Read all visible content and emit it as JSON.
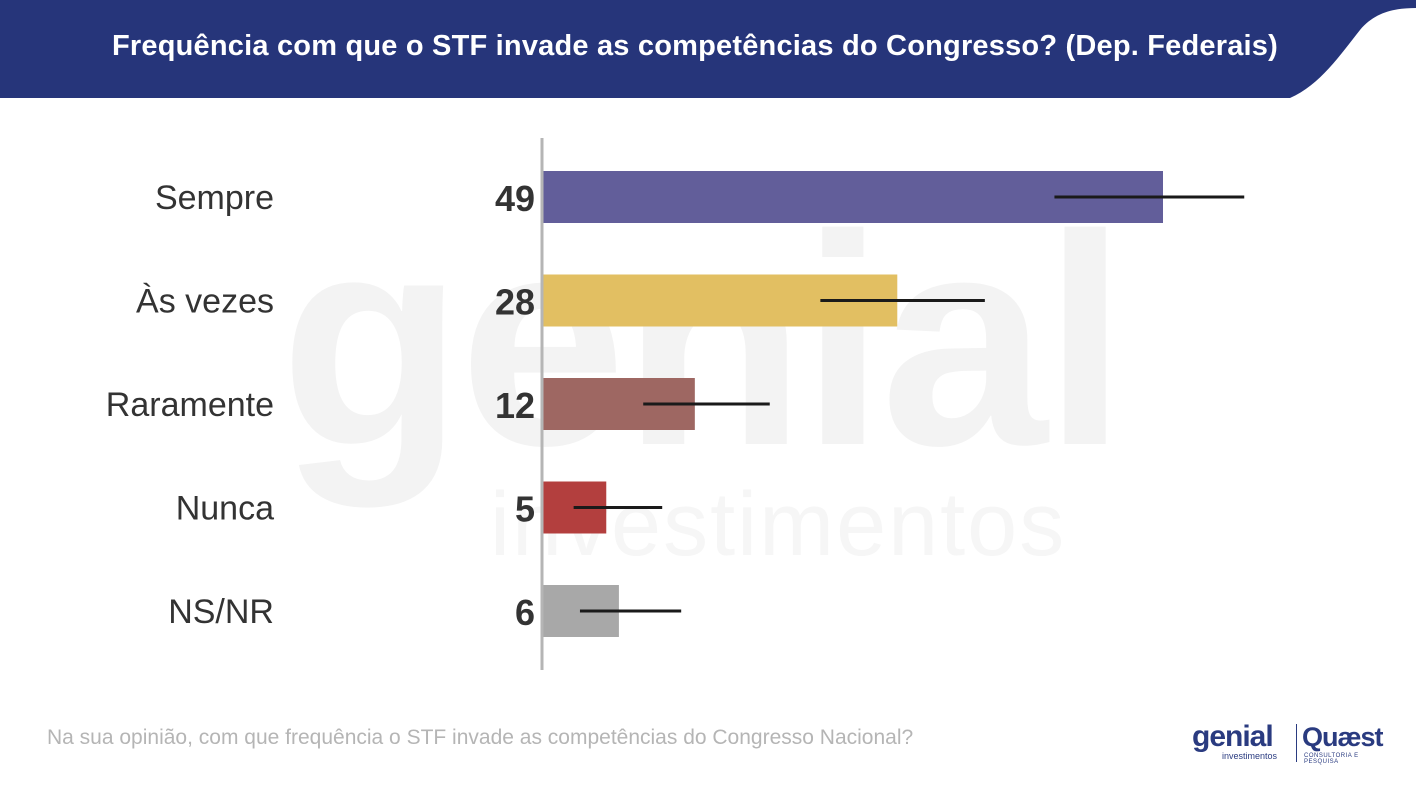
{
  "header": {
    "title": "Frequência com que o STF invade as competências do Congresso? (Dep. Federais)",
    "background_color": "#26357a"
  },
  "watermark": {
    "main_text": "genial",
    "sub_text": "investimentos"
  },
  "chart_data": {
    "type": "bar",
    "orientation": "horizontal",
    "title": "Frequência com que o STF invade as competências do Congresso? (Dep. Federais)",
    "categories": [
      "Sempre",
      "Às vezes",
      "Raramente",
      "Nunca",
      "NS/NR"
    ],
    "values": [
      49,
      28,
      12,
      5,
      6
    ],
    "value_labels": [
      "49",
      "28",
      "12",
      "5",
      "6"
    ],
    "error_bars": [
      {
        "low": 40.5,
        "high": 55.5
      },
      {
        "low": 22,
        "high": 35
      },
      {
        "low": 8,
        "high": 18
      },
      {
        "low": 2.5,
        "high": 9.5
      },
      {
        "low": 3,
        "high": 11
      }
    ],
    "colors": [
      "#625e9a",
      "#e2bf62",
      "#9e6762",
      "#b33f3e",
      "#a8a8a8"
    ],
    "xlim": [
      0,
      60
    ],
    "legend": "none",
    "grid": false
  },
  "footer": {
    "question": "Na sua opinião, com que frequência o STF invade as competências do Congresso Nacional?"
  },
  "logos": {
    "genial": "genial",
    "genial_sub": "investimentos",
    "quaest": "Quæst",
    "quaest_sub": "CONSULTORIA E PESQUISA",
    "brand_color": "#2a3b80"
  }
}
